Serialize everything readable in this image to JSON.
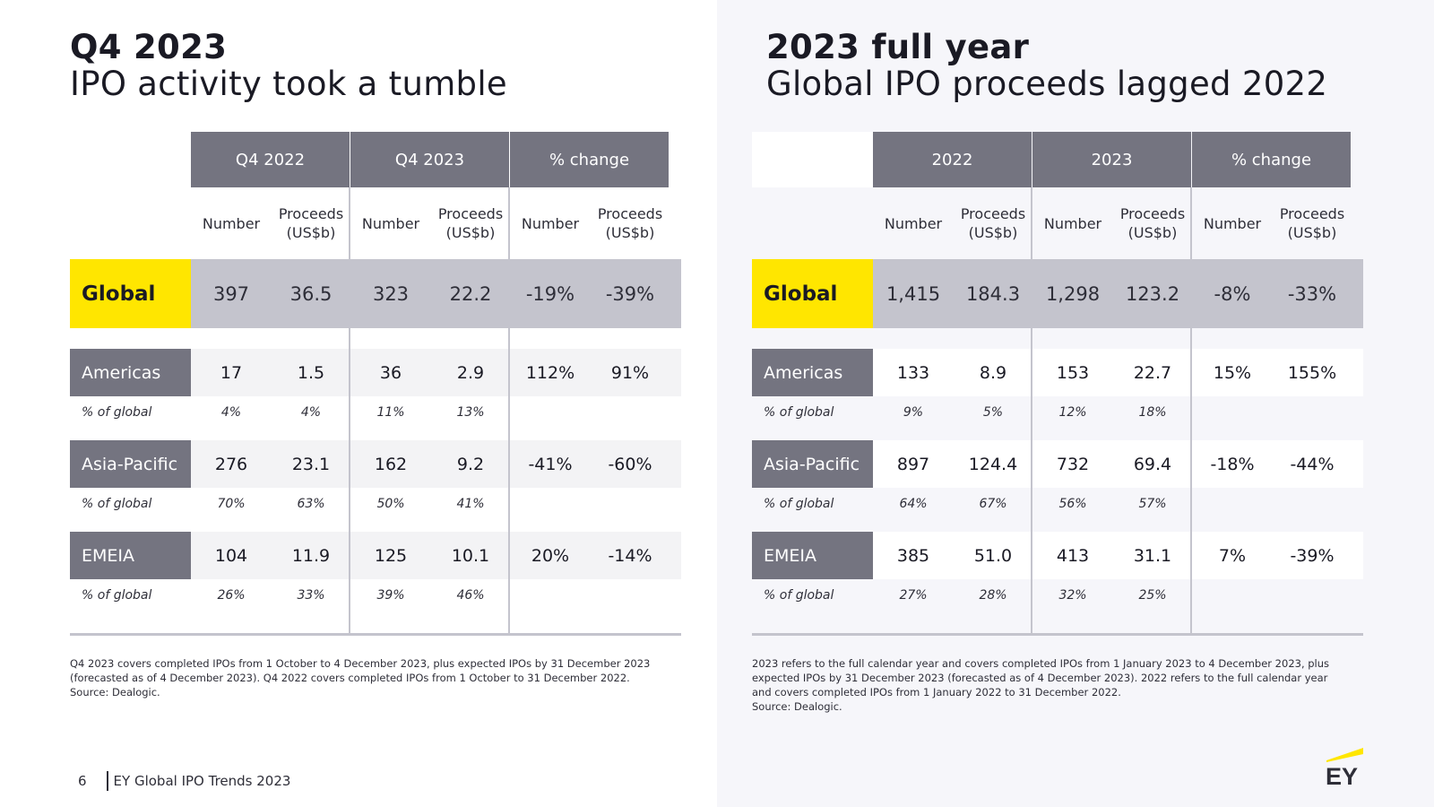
{
  "left": {
    "title_line1": "Q4 2023",
    "title_line2": "IPO activity took a tumble",
    "groups": [
      "Q4 2022",
      "Q4 2023",
      "% change"
    ],
    "subheaders": [
      "Number",
      "Proceeds\n(US$b)",
      "Number",
      "Proceeds\n(US$b)",
      "Number",
      "Proceeds\n(US$b)"
    ],
    "global": {
      "label": "Global",
      "values": [
        "397",
        "36.5",
        "323",
        "22.2",
        "-19%",
        "-39%"
      ]
    },
    "regions": [
      {
        "label": "Americas",
        "values": [
          "17",
          "1.5",
          "36",
          "2.9",
          "112%",
          "91%"
        ],
        "pct_label": "% of global",
        "pct": [
          "4%",
          "4%",
          "11%",
          "13%"
        ]
      },
      {
        "label": "Asia-Pacific",
        "values": [
          "276",
          "23.1",
          "162",
          "9.2",
          "-41%",
          "-60%"
        ],
        "pct_label": "% of global",
        "pct": [
          "70%",
          "63%",
          "50%",
          "41%"
        ]
      },
      {
        "label": "EMEIA",
        "values": [
          "104",
          "11.9",
          "125",
          "10.1",
          "20%",
          "-14%"
        ],
        "pct_label": "% of global",
        "pct": [
          "26%",
          "33%",
          "39%",
          "46%"
        ]
      }
    ],
    "note_lines": [
      "Q4 2023 covers completed IPOs from 1 October to 4 December 2023, plus expected IPOs by 31 December 2023",
      "(forecasted as of 4 December 2023). Q4 2022 covers completed IPOs from 1 October to 31 December 2022.",
      "Source: Dealogic."
    ]
  },
  "right": {
    "title_line1": "2023 full year",
    "title_line2": "Global IPO proceeds lagged 2022",
    "groups": [
      "2022",
      "2023",
      "% change"
    ],
    "subheaders": [
      "Number",
      "Proceeds\n(US$b)",
      "Number",
      "Proceeds\n(US$b)",
      "Number",
      "Proceeds\n(US$b)"
    ],
    "global": {
      "label": "Global",
      "values": [
        "1,415",
        "184.3",
        "1,298",
        "123.2",
        "-8%",
        "-33%"
      ]
    },
    "regions": [
      {
        "label": "Americas",
        "values": [
          "133",
          "8.9",
          "153",
          "22.7",
          "15%",
          "155%"
        ],
        "pct_label": "% of global",
        "pct": [
          "9%",
          "5%",
          "12%",
          "18%"
        ]
      },
      {
        "label": "Asia-Pacific",
        "values": [
          "897",
          "124.4",
          "732",
          "69.4",
          "-18%",
          "-44%"
        ],
        "pct_label": "% of global",
        "pct": [
          "64%",
          "67%",
          "56%",
          "57%"
        ]
      },
      {
        "label": "EMEIA",
        "values": [
          "385",
          "51.0",
          "413",
          "31.1",
          "7%",
          "-39%"
        ],
        "pct_label": "% of global",
        "pct": [
          "27%",
          "28%",
          "32%",
          "25%"
        ]
      }
    ],
    "note_lines": [
      "2023 refers to the full calendar year and covers completed IPOs from 1 January 2023 to 4 December 2023, plus",
      "expected IPOs by 31 December 2023 (forecasted as of 4 December 2023). 2022 refers to the full calendar year",
      "and covers completed IPOs from 1 January 2022 to 31 December 2022.",
      "Source: Dealogic."
    ]
  },
  "footer": {
    "page_number": "6",
    "publication": "EY Global IPO Trends 2023"
  },
  "brand": {
    "logo_text": "EY",
    "accent_color": "#ffe600",
    "dark_color": "#2e2e38",
    "header_gray": "#747480",
    "band_gray": "#c4c4cd",
    "logo_icon": "ey-logo-icon"
  }
}
